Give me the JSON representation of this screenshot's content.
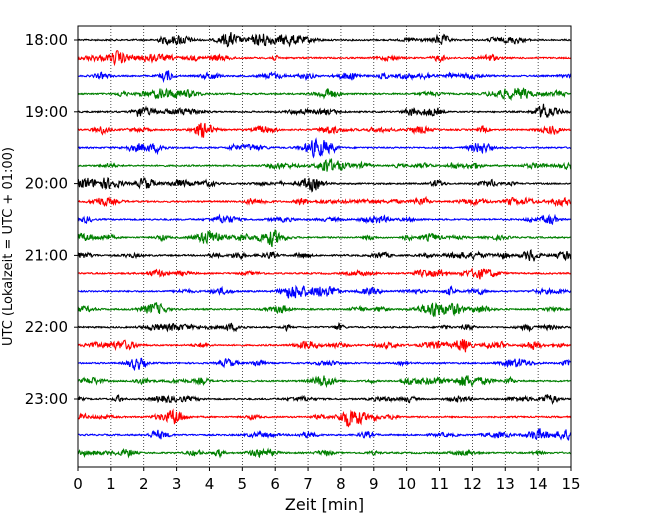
{
  "chart_data": {
    "type": "line",
    "title": "",
    "xlabel": "Zeit  [min]",
    "ylabel": "UTC (Lokalzeit = UTC + 01:00)",
    "xlim": [
      0,
      15
    ],
    "xticks": [
      0,
      1,
      2,
      3,
      4,
      5,
      6,
      7,
      8,
      9,
      10,
      11,
      12,
      13,
      14,
      15
    ],
    "vertical_grid": "dotted",
    "trace_interval_minutes": 15,
    "traces_start": "18:00",
    "trace_count": 24,
    "yticks": [
      {
        "label": "18:00",
        "trace_index": 0
      },
      {
        "label": "19:00",
        "trace_index": 4
      },
      {
        "label": "20:00",
        "trace_index": 8
      },
      {
        "label": "21:00",
        "trace_index": 12
      },
      {
        "label": "22:00",
        "trace_index": 16
      },
      {
        "label": "23:00",
        "trace_index": 20
      }
    ],
    "trace_colors": [
      "#000000",
      "#ff0000",
      "#0000ff",
      "#008000"
    ],
    "series_note": "Seismogram helicorder: each row is a 15-minute trace, colors cycle black, red, blue, green."
  }
}
